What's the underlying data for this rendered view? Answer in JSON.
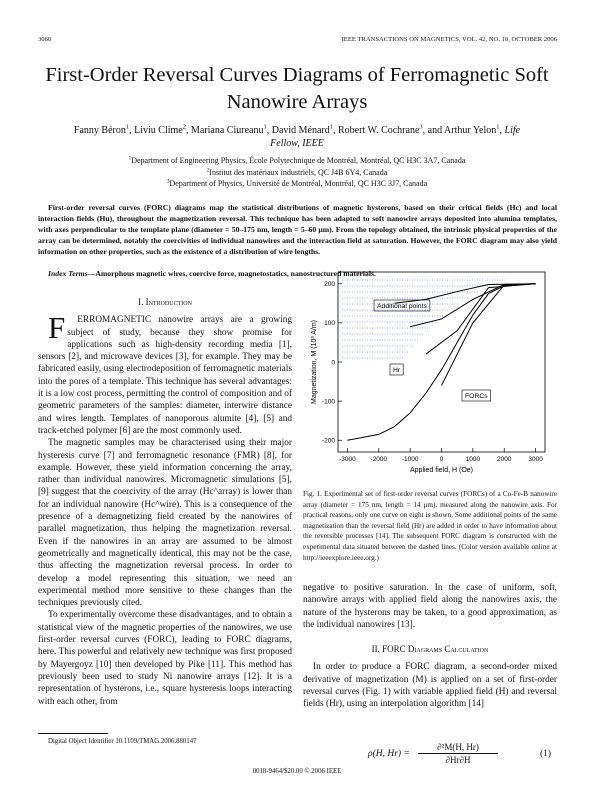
{
  "header": {
    "page_number": "3060",
    "journal": "IEEE TRANSACTIONS ON MAGNETICS, VOL. 42, NO. 10, OCTOBER 2006"
  },
  "title": "First-Order Reversal Curves Diagrams of Ferromagnetic Soft Nanowire Arrays",
  "authors": [
    {
      "name": "Fanny Béron",
      "sup": "1",
      "after": ", "
    },
    {
      "name": "Liviu Clime",
      "sup": "2",
      "after": ", "
    },
    {
      "name": "Mariana Ciureanu",
      "sup": "1",
      "after": ", "
    },
    {
      "name": "David Ménard",
      "sup": "1",
      "after": ", "
    },
    {
      "name": "Robert W. Cochrane",
      "sup": "3",
      "after": ", and "
    },
    {
      "name": "Arthur Yelon",
      "sup": "1",
      "after": ", "
    }
  ],
  "author_note": "Life Fellow, IEEE",
  "affiliations": [
    {
      "sup": "1",
      "text": "Department of Engineering Physics, École Polytechnique de Montréal, Montréal, QC H3C 3A7, Canada"
    },
    {
      "sup": "2",
      "text": "Institut des matériaux industriels, QC J4B 6Y4, Canada"
    },
    {
      "sup": "3",
      "text": "Department of Physics, Université de Montréal, Montréal, QC H3C 3J7, Canada"
    }
  ],
  "abstract": "First-order reversal curves (FORC) diagrams map the statistical distributions of magnetic hysterons, based on their critical fields (Hc) and local interaction fields (Hu), throughout the magnetization reversal. This technique has been adapted to soft nanowire arrays deposited into alumina templates, with axes perpendicular to the template plane (diameter = 50–175 nm, length = 5–60 μm). From the topology obtained, the intrinsic physical properties of the array can be determined, notably the coercivities of individual nanowires and the interaction field at saturation. However, the FORC diagram may also yield information on other properties, such as the existence of a distribution of wire lengths.",
  "index_terms": {
    "label": "Index Terms—",
    "text": "Amorphous magnetic wires, coercive force, magnetostatics, nanostructured materials."
  },
  "sections": [
    {
      "heading": "I. Introduction",
      "paragraphs": [
        "FERROMAGNETIC nanowire arrays are a growing subject of study, because they show promise for applications such as high-density recording media [1], sensors [2], and microwave devices [3], for example. They may be fabricated easily, using electrodeposition of ferromagnetic materials into the pores of a template. This technique has several advantages: it is a low cost process, permitting the control of composition and of geometric parameters of the samples: diameter, interwire distance and wires length. Templates of nanoporous alumite [4], [5] and track-etched polymer [6] are the most commonly used.",
        "The magnetic samples may be characterised using their major hysteresis curve [7] and ferromagnetic resonance (FMR) [8], for example. However, these yield information concerning the array, rather than individual nanowires. Micromagnetic simulations [5], [9] suggest that the coercivity of the array (Hc^array) is lower than for an individual nanowire (Hc^wire). This is a consequence of the presence of a demagnetizing field created by the nanowires of parallel magnetization, thus helping the magnetization reversal. Even if the nanowires in an array are assumed to be almost geometrically and magnetically identical, this may not be the case, thus affecting the magnetization reversal process. In order to develop a model representing this situation, we need an experimental method more sensitive to these changes than the techniques previously cited.",
        "To experimentally overcome these disadvantages, and to obtain a statistical view of the magnetic properties of the nanowires, we use first-order reversal curves (FORC), leading to FORC diagrams, here. This powerful and relatively new technique was first proposed by Mayergoyz [10] then developed by Pike [11]. This method has previously been used to study Ni nanowire arrays [12]. It is a representation of hysterons, i.e., square hysteresis loops interacting with each other, from",
        "negative to positive saturation. In the case of uniform, soft, nanowire arrays with applied field along the nanowires axis, the nature of the hysterons may be taken, to a good approximation, as the individual nanowires [13]."
      ]
    },
    {
      "heading": "II. FORC Diagrams Calculation",
      "paragraphs": [
        "In order to produce a FORC diagram, a second-order mixed derivative of magnetization (M) is applied on a set of first-order reversal curves (Fig. 1) with variable applied field (H) and reversal fields (Hr), using an interpolation algorithm [14]"
      ]
    }
  ],
  "equation": {
    "lhs": "ρ(H, Hr) =",
    "numerator": "∂²M(H, Hr)",
    "denominator": "∂Hr∂H",
    "number": "(1)"
  },
  "figure": {
    "chart": {
      "type": "line",
      "xlabel": "Applied field, H (Oe)",
      "ylabel": "Magnetization, M (10³ A/m)",
      "xlim": [
        -3300,
        3300
      ],
      "ylim": [
        -230,
        230
      ],
      "xticks": [
        -3000,
        -2000,
        -1000,
        0,
        1000,
        2000,
        3000
      ],
      "yticks": [
        -200,
        -100,
        0,
        100,
        200
      ],
      "series": [
        {
          "color": "#000000",
          "x": [
            -3000,
            -2000,
            -1500,
            -1000,
            -500,
            0,
            500,
            1000,
            1500,
            2000,
            3000
          ],
          "values": [
            -200,
            -185,
            -165,
            -130,
            -80,
            -20,
            50,
            120,
            175,
            195,
            200
          ]
        },
        {
          "color": "#000000",
          "x": [
            -1500,
            -500,
            500,
            1500,
            3000
          ],
          "values": [
            150,
            160,
            180,
            198,
            200
          ]
        },
        {
          "color": "#000000",
          "x": [
            -1000,
            0,
            1000,
            2000,
            3000
          ],
          "values": [
            90,
            110,
            160,
            198,
            200
          ]
        },
        {
          "color": "#000000",
          "x": [
            -500,
            500,
            1500,
            3000
          ],
          "values": [
            20,
            80,
            190,
            200
          ]
        },
        {
          "color": "#000000",
          "x": [
            0,
            1000,
            2000,
            3000
          ],
          "values": [
            -60,
            100,
            197,
            200
          ]
        }
      ],
      "annotations": [
        "Additional points",
        "Hr",
        "FORCs"
      ]
    },
    "caption": "Fig. 1. Experimental set of first-order reversal curves (FORCs) of a Co-Fe-B nanowire array (diameter = 175 nm, length = 14 μm), measured along the nanowire axis. For practical reasons, only one curve on eight is shown. Some additional points of the same magnetization than the reversal field (Hr) are added in order to have information about the reversible processes [14]. The subsequent FORC diagram is constructed with the experimental data situated between the dashed lines. (Color version available online at http://ieeexplore.ieee.org.)"
  },
  "footnote": "Digital Object Identifier 10.1109/TMAG.2006.880147",
  "footer": "0018-9464/$20.00 © 2006 IEEE"
}
